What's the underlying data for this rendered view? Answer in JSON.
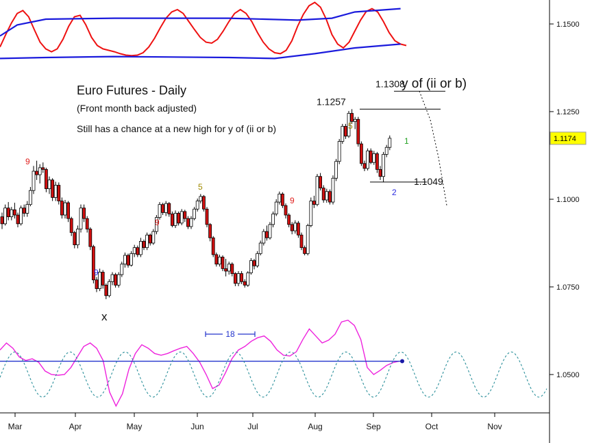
{
  "chart_data": {
    "type": "candlestick",
    "title": "Euro Futures - Daily",
    "subtitle": "(Front month back adjusted)",
    "annotation": "Still has a chance at a new high for y of (ii or b)",
    "x_ticks": [
      "Mar",
      "Apr",
      "May",
      "Jun",
      "Jul",
      "Aug",
      "Sep",
      "Oct",
      "Nov"
    ],
    "y_ticks": [
      "1.1500",
      "1.1250",
      "1.1000",
      "1.0750",
      "1.0500"
    ],
    "y_range": [
      1.0415,
      1.1555
    ],
    "last_price": "1.1174",
    "levels": [
      {
        "label": "1.1308",
        "value": 1.1308
      },
      {
        "label": "1.1257",
        "value": 1.1257
      },
      {
        "label": "1.1049",
        "value": 1.1049
      }
    ],
    "wave_labels": [
      {
        "text": "y of (ii or b)"
      },
      {
        "text": "x"
      }
    ],
    "count_labels": [
      {
        "text": "9",
        "color": "#e0201e"
      },
      {
        "text": "9",
        "color": "#2a2ae0"
      },
      {
        "text": "9",
        "color": "#e0201e"
      },
      {
        "text": "5",
        "color": "#a08a00"
      },
      {
        "text": "9",
        "color": "#e0201e"
      },
      {
        "text": "5",
        "color": "#a08a00"
      },
      {
        "text": "2",
        "color": "#2a2ae0"
      },
      {
        "text": "1",
        "color": "#20a020"
      }
    ],
    "cycle_label": "18",
    "candles": [
      [
        1.095,
        1.0962,
        1.0915,
        1.093
      ],
      [
        1.093,
        1.0985,
        1.0925,
        1.0975
      ],
      [
        1.0975,
        1.0992,
        1.094,
        1.095
      ],
      [
        1.095,
        1.0978,
        1.094,
        1.097
      ],
      [
        1.097,
        1.099,
        1.0945,
        1.0955
      ],
      [
        1.0955,
        1.0962,
        1.092,
        1.093
      ],
      [
        1.093,
        1.0982,
        1.0925,
        1.0975
      ],
      [
        1.0975,
        1.0985,
        1.095,
        1.096
      ],
      [
        1.096,
        1.0995,
        1.095,
        1.0985
      ],
      [
        1.0985,
        1.1035,
        1.098,
        1.1025
      ],
      [
        1.1025,
        1.1095,
        1.1015,
        1.108
      ],
      [
        1.108,
        1.111,
        1.1055,
        1.107
      ],
      [
        1.107,
        1.11,
        1.1045,
        1.109
      ],
      [
        1.109,
        1.1105,
        1.1075,
        1.1085
      ],
      [
        1.1085,
        1.109,
        1.102,
        1.103
      ],
      [
        1.103,
        1.1065,
        1.1015,
        1.1055
      ],
      [
        1.1055,
        1.106,
        1.0995,
        1.1005
      ],
      [
        1.1005,
        1.105,
        1.0995,
        1.104
      ],
      [
        1.104,
        1.1048,
        1.0985,
        1.0995
      ],
      [
        1.0995,
        1.1005,
        1.0945,
        1.0955
      ],
      [
        1.0955,
        1.0998,
        1.0945,
        1.099
      ],
      [
        1.099,
        1.0995,
        1.0935,
        1.0945
      ],
      [
        1.0945,
        1.095,
        1.0895,
        1.0905
      ],
      [
        1.0905,
        1.091,
        1.086,
        1.087
      ],
      [
        1.087,
        1.0925,
        1.086,
        1.0915
      ],
      [
        1.0915,
        1.0985,
        1.0905,
        1.0975
      ],
      [
        1.0975,
        1.0985,
        1.0935,
        1.0945
      ],
      [
        1.0945,
        1.0952,
        1.0905,
        1.0915
      ],
      [
        1.0915,
        1.092,
        1.0855,
        1.0865
      ],
      [
        1.0865,
        1.087,
        1.076,
        1.077
      ],
      [
        1.077,
        1.0778,
        1.0735,
        1.0745
      ],
      [
        1.0745,
        1.0802,
        1.0738,
        1.0792
      ],
      [
        1.0792,
        1.0798,
        1.0745,
        1.0755
      ],
      [
        1.0755,
        1.076,
        1.0715,
        1.0725
      ],
      [
        1.0725,
        1.0772,
        1.072,
        1.0765
      ],
      [
        1.0765,
        1.0792,
        1.0755,
        1.0785
      ],
      [
        1.0785,
        1.079,
        1.0748,
        1.0755
      ],
      [
        1.0755,
        1.0792,
        1.0748,
        1.0785
      ],
      [
        1.0785,
        1.0822,
        1.0778,
        1.0815
      ],
      [
        1.0815,
        1.0848,
        1.0805,
        1.084
      ],
      [
        1.084,
        1.0845,
        1.0805,
        1.0812
      ],
      [
        1.0812,
        1.0852,
        1.0808,
        1.0845
      ],
      [
        1.0845,
        1.087,
        1.0835,
        1.0862
      ],
      [
        1.0862,
        1.0868,
        1.0835,
        1.0842
      ],
      [
        1.0842,
        1.089,
        1.0835,
        1.088
      ],
      [
        1.088,
        1.0885,
        1.0855,
        1.0862
      ],
      [
        1.0862,
        1.0905,
        1.0855,
        1.0898
      ],
      [
        1.0898,
        1.0902,
        1.0868,
        1.0875
      ],
      [
        1.0875,
        1.0915,
        1.087,
        1.0908
      ],
      [
        1.0908,
        1.0955,
        1.09,
        1.0948
      ],
      [
        1.0948,
        1.0992,
        1.0942,
        1.0985
      ],
      [
        1.0985,
        1.099,
        1.0955,
        1.0962
      ],
      [
        1.0962,
        1.0995,
        1.0952,
        1.0988
      ],
      [
        1.0988,
        1.0992,
        1.095,
        1.0958
      ],
      [
        1.0958,
        1.0965,
        1.092,
        1.0925
      ],
      [
        1.0925,
        1.0968,
        1.0918,
        1.096
      ],
      [
        1.096,
        1.0965,
        1.0925,
        1.0932
      ],
      [
        1.0932,
        1.0972,
        1.0926,
        1.0965
      ],
      [
        1.0965,
        1.097,
        1.0935,
        1.0945
      ],
      [
        1.0945,
        1.0952,
        1.0915,
        1.0922
      ],
      [
        1.0922,
        1.0952,
        1.0915,
        1.0945
      ],
      [
        1.0945,
        1.0978,
        1.094,
        1.0972
      ],
      [
        1.0972,
        1.1002,
        1.0965,
        1.0995
      ],
      [
        1.0995,
        1.1015,
        1.0988,
        1.1008
      ],
      [
        1.1008,
        1.1012,
        1.0965,
        1.0972
      ],
      [
        1.0972,
        1.0978,
        1.092,
        1.0928
      ],
      [
        1.0928,
        1.0932,
        1.088,
        1.089
      ],
      [
        1.089,
        1.0895,
        1.0835,
        1.0842
      ],
      [
        1.0842,
        1.0848,
        1.0808,
        1.0815
      ],
      [
        1.0815,
        1.0842,
        1.0808,
        1.0835
      ],
      [
        1.0835,
        1.084,
        1.0795,
        1.0802
      ],
      [
        1.0802,
        1.083,
        1.078,
        1.0795
      ],
      [
        1.0795,
        1.0822,
        1.0785,
        1.0815
      ],
      [
        1.0815,
        1.082,
        1.078,
        1.0788
      ],
      [
        1.0788,
        1.0792,
        1.0752,
        1.076
      ],
      [
        1.076,
        1.0795,
        1.0752,
        1.0788
      ],
      [
        1.0788,
        1.0795,
        1.0758,
        1.0765
      ],
      [
        1.0765,
        1.0772,
        1.0748,
        1.0755
      ],
      [
        1.0755,
        1.0795,
        1.075,
        1.079
      ],
      [
        1.079,
        1.0832,
        1.0785,
        1.0825
      ],
      [
        1.0825,
        1.083,
        1.08,
        1.081
      ],
      [
        1.081,
        1.0852,
        1.0805,
        1.0845
      ],
      [
        1.0845,
        1.0882,
        1.084,
        1.0875
      ],
      [
        1.0875,
        1.0915,
        1.0868,
        1.0908
      ],
      [
        1.0908,
        1.0925,
        1.0882,
        1.089
      ],
      [
        1.089,
        1.0935,
        1.0885,
        1.0928
      ],
      [
        1.0928,
        1.0965,
        1.092,
        1.0958
      ],
      [
        1.0958,
        1.1,
        1.0952,
        1.0992
      ],
      [
        1.0992,
        1.1022,
        1.0985,
        1.1015
      ],
      [
        1.1015,
        1.102,
        1.0975,
        1.0982
      ],
      [
        1.0982,
        1.0988,
        1.0945,
        1.0955
      ],
      [
        1.0955,
        1.096,
        1.092,
        1.0928
      ],
      [
        1.0928,
        1.0935,
        1.09,
        1.091
      ],
      [
        1.091,
        1.094,
        1.0902,
        1.0932
      ],
      [
        1.0932,
        1.0938,
        1.089,
        1.0898
      ],
      [
        1.0898,
        1.0905,
        1.0855,
        1.0862
      ],
      [
        1.0862,
        1.0868,
        1.084,
        1.0845
      ],
      [
        1.0845,
        1.093,
        1.084,
        1.0925
      ],
      [
        1.0925,
        1.1005,
        1.092,
        1.0995
      ],
      [
        1.0995,
        1.101,
        1.0975,
        1.0985
      ],
      [
        1.0985,
        1.1072,
        1.098,
        1.1065
      ],
      [
        1.1065,
        1.1075,
        1.1025,
        1.1032
      ],
      [
        1.1032,
        1.104,
        1.099,
        1.0998
      ],
      [
        1.0998,
        1.103,
        1.099,
        1.1022
      ],
      [
        1.1022,
        1.1028,
        1.0985,
        1.0992
      ],
      [
        1.0992,
        1.1068,
        1.0985,
        1.106
      ],
      [
        1.106,
        1.1115,
        1.1052,
        1.1108
      ],
      [
        1.1108,
        1.1172,
        1.11,
        1.1165
      ],
      [
        1.1165,
        1.1215,
        1.1158,
        1.1208
      ],
      [
        1.1208,
        1.1215,
        1.1172,
        1.118
      ],
      [
        1.118,
        1.1252,
        1.1175,
        1.1245
      ],
      [
        1.1245,
        1.1257,
        1.1215,
        1.1222
      ],
      [
        1.1222,
        1.1235,
        1.12,
        1.1228
      ],
      [
        1.1228,
        1.1235,
        1.115,
        1.1158
      ],
      [
        1.1158,
        1.1165,
        1.1095,
        1.1102
      ],
      [
        1.1102,
        1.111,
        1.108,
        1.1088
      ],
      [
        1.1088,
        1.1145,
        1.1082,
        1.1138
      ],
      [
        1.1138,
        1.1145,
        1.11,
        1.1105
      ],
      [
        1.1105,
        1.1138,
        1.1098,
        1.113
      ],
      [
        1.113,
        1.1135,
        1.1075,
        1.1085
      ],
      [
        1.1085,
        1.1095,
        1.1055,
        1.1065
      ],
      [
        1.1065,
        1.1135,
        1.1049,
        1.1128
      ],
      [
        1.1128,
        1.1155,
        1.112,
        1.1148
      ],
      [
        1.1148,
        1.1182,
        1.114,
        1.1174
      ]
    ],
    "oscillator_top": {
      "red": [
        1.1452,
        1.1478,
        1.1502,
        1.1522,
        1.1528,
        1.1515,
        1.1488,
        1.1462,
        1.1448,
        1.1442,
        1.1448,
        1.1468,
        1.1495,
        1.1515,
        1.1518,
        1.1498,
        1.1472,
        1.1455,
        1.1448,
        1.1445,
        1.1442,
        1.1438,
        1.1435,
        1.1434,
        1.1435,
        1.144,
        1.1452,
        1.147,
        1.1492,
        1.1512,
        1.1525,
        1.153,
        1.1522,
        1.1505,
        1.1488,
        1.1472,
        1.1462,
        1.146,
        1.1468,
        1.1485,
        1.1505,
        1.1522,
        1.153,
        1.1522,
        1.1505,
        1.1482,
        1.1462,
        1.1448,
        1.144,
        1.1438,
        1.1445,
        1.1465,
        1.1495,
        1.152,
        1.1538,
        1.1545,
        1.1535,
        1.151,
        1.1478,
        1.1458,
        1.145,
        1.1462,
        1.1485,
        1.1508,
        1.1526,
        1.1532,
        1.1525,
        1.1505,
        1.1482,
        1.1465,
        1.1458,
        1.1455
      ],
      "blue_upper": [
        [
          0,
          1.1475
        ],
        [
          3,
          1.1498
        ],
        [
          8,
          1.151
        ],
        [
          20,
          1.1512
        ],
        [
          40,
          1.1512
        ],
        [
          52,
          1.1508
        ],
        [
          58,
          1.1512
        ],
        [
          62,
          1.1525
        ],
        [
          70,
          1.1532
        ]
      ],
      "blue_lower": [
        [
          0,
          1.1428
        ],
        [
          8,
          1.143
        ],
        [
          20,
          1.1432
        ],
        [
          40,
          1.143
        ],
        [
          48,
          1.1428
        ],
        [
          55,
          1.1438
        ],
        [
          62,
          1.145
        ],
        [
          70,
          1.1458
        ]
      ]
    },
    "oscillator_bottom": {
      "magenta": [
        1.057,
        1.059,
        1.0575,
        1.055,
        1.054,
        1.0545,
        1.0535,
        1.051,
        1.05,
        1.0498,
        1.05,
        1.052,
        1.055,
        1.058,
        1.059,
        1.0575,
        1.054,
        1.045,
        1.041,
        1.0445,
        1.0515,
        1.056,
        1.0585,
        1.0575,
        1.056,
        1.0555,
        1.056,
        1.0568,
        1.0575,
        1.058,
        1.056,
        1.0535,
        1.05,
        1.046,
        1.047,
        1.0505,
        1.0545,
        1.057,
        1.058,
        1.0595,
        1.0605,
        1.061,
        1.0595,
        1.057,
        1.0555,
        1.0553,
        1.0565,
        1.06,
        1.063,
        1.061,
        1.059,
        1.0598,
        1.0615,
        1.065,
        1.0655,
        1.064,
        1.06,
        1.052,
        1.05,
        1.0512,
        1.0526,
        1.0534,
        1.0538
      ],
      "blue_level": 1.0538,
      "dashed_cycle_bars": 17.5
    }
  }
}
